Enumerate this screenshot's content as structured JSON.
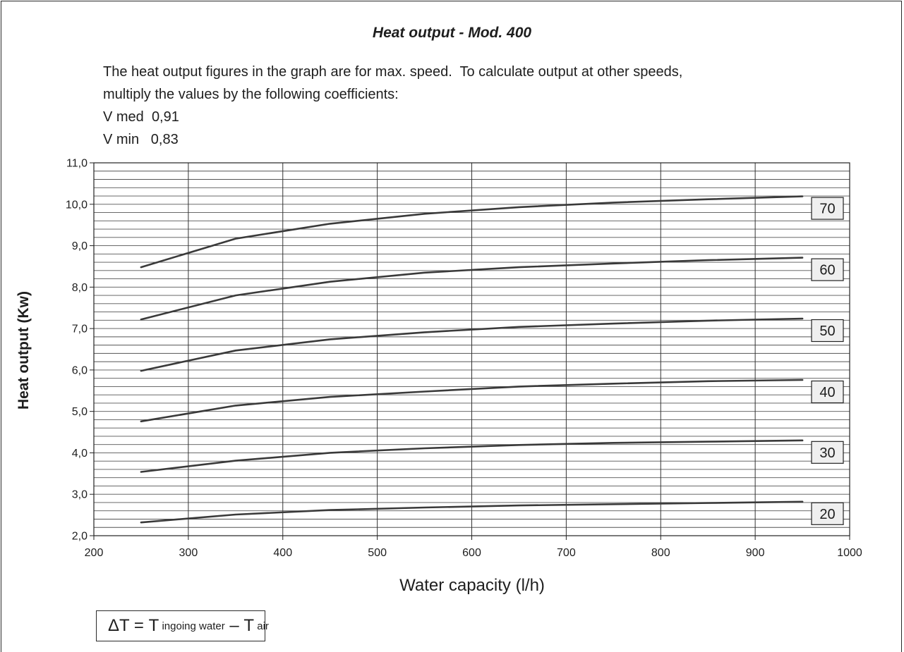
{
  "chart_data": {
    "type": "line",
    "title": "Heat output - Mod. 400",
    "notes": [
      "The heat output figures in the graph are for max. speed.  To calculate output at other speeds,",
      "multiply the values by the following coefficients:"
    ],
    "coefficients": [
      {
        "label": "V med",
        "value": "0,91"
      },
      {
        "label": "V min",
        "value": "0,83"
      }
    ],
    "xlabel": "Water capacity (l/h)",
    "ylabel": "Heat output (Kw)",
    "xlim": [
      200,
      1000
    ],
    "ylim": [
      2.0,
      11.0
    ],
    "x_ticks": [
      "200",
      "300",
      "400",
      "500",
      "600",
      "700",
      "800",
      "900",
      "1000"
    ],
    "y_ticks": [
      "2,0",
      "3,0",
      "4,0",
      "5,0",
      "6,0",
      "7,0",
      "8,0",
      "9,0",
      "10,0",
      "11,0"
    ],
    "grid": true,
    "x": [
      250,
      350,
      450,
      550,
      650,
      750,
      850,
      950
    ],
    "series": [
      {
        "name": "20",
        "values": [
          2.32,
          2.51,
          2.62,
          2.68,
          2.73,
          2.76,
          2.79,
          2.82
        ]
      },
      {
        "name": "30",
        "values": [
          3.54,
          3.81,
          4.0,
          4.11,
          4.19,
          4.24,
          4.27,
          4.3
        ]
      },
      {
        "name": "40",
        "values": [
          4.76,
          5.14,
          5.35,
          5.48,
          5.6,
          5.67,
          5.73,
          5.76
        ]
      },
      {
        "name": "50",
        "values": [
          5.98,
          6.47,
          6.74,
          6.91,
          7.04,
          7.12,
          7.19,
          7.24
        ]
      },
      {
        "name": "60",
        "values": [
          7.22,
          7.8,
          8.13,
          8.35,
          8.48,
          8.57,
          8.65,
          8.71
        ]
      },
      {
        "name": "70",
        "values": [
          8.48,
          9.17,
          9.53,
          9.77,
          9.93,
          10.04,
          10.12,
          10.19
        ]
      }
    ]
  },
  "formula": {
    "delta_t": "ΔT =",
    "t1": "T",
    "ingoing_water": "ingoing water",
    "minus": "–",
    "t2": "T",
    "air": "air"
  }
}
